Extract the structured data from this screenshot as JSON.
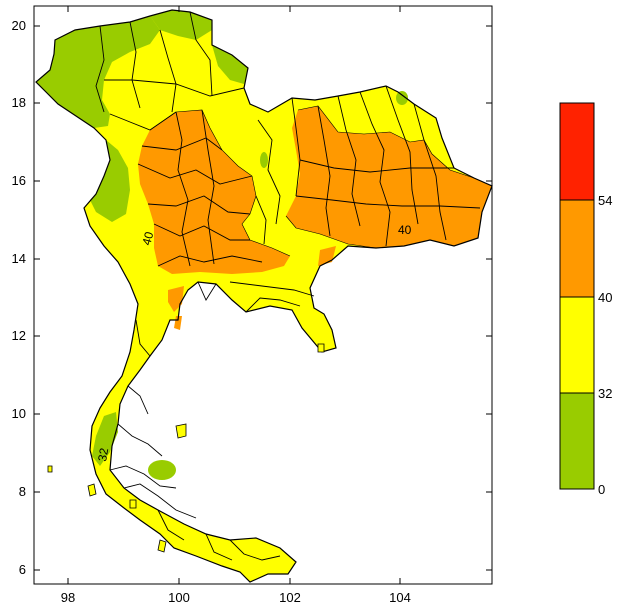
{
  "map": {
    "x_ticks": [
      "98",
      "100",
      "102",
      "104"
    ],
    "y_ticks": [
      "20",
      "18",
      "16",
      "14",
      "12",
      "10",
      "8",
      "6"
    ],
    "contour_labels": [
      "40",
      "40",
      "32"
    ]
  },
  "colorbar": {
    "labels": [
      "54",
      "40",
      "32",
      "0"
    ],
    "colors": [
      "#ff2200",
      "#ff9900",
      "#ffff00",
      "#99cc00"
    ]
  },
  "colors": {
    "green": "#99cc00",
    "yellow": "#ffff00",
    "orange": "#ff9900",
    "red": "#ff2200"
  }
}
